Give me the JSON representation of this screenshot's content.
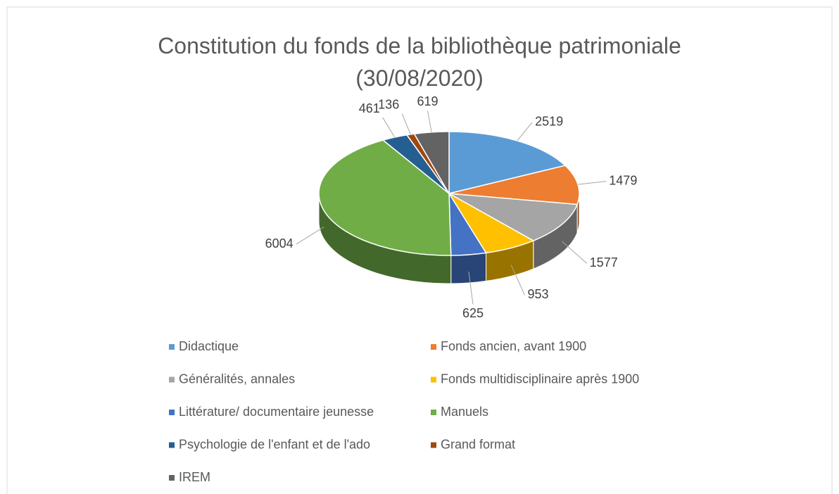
{
  "chart_data": {
    "type": "pie",
    "title": "Constitution du fonds de la bibliothèque patrimoniale (30/08/2020)",
    "categories": [
      "Didactique",
      "Fonds ancien, avant 1900",
      "Généralités, annales",
      "Fonds multidisciplinaire après 1900",
      "Littérature/ documentaire jeunesse",
      "Manuels",
      "Psychologie de l'enfant et de l'ado",
      "Grand format",
      "IREM"
    ],
    "values": [
      2519,
      1479,
      1577,
      953,
      625,
      6004,
      461,
      136,
      619
    ],
    "colors": [
      "#5b9bd5",
      "#ed7d31",
      "#a5a5a5",
      "#ffc000",
      "#4472c4",
      "#70ad47",
      "#255e91",
      "#9e480e",
      "#636363"
    ],
    "legend": "bottom"
  }
}
